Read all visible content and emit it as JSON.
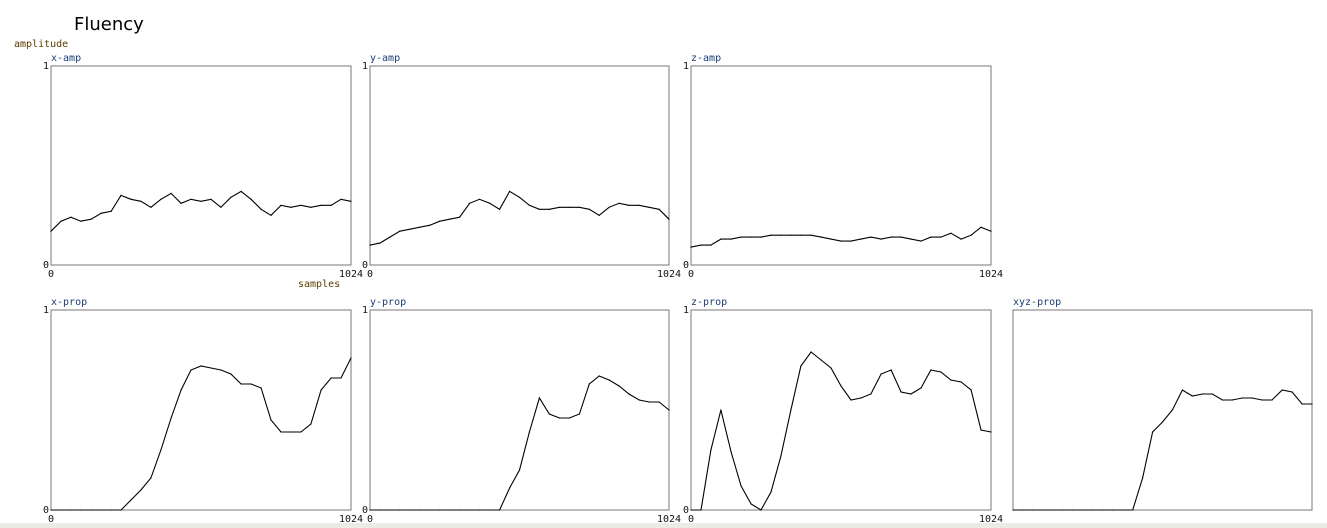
{
  "title": "Fluency",
  "chart_data": {
    "type": "line",
    "title": "Fluency",
    "ylabel": "amplitude",
    "xlabel": "samples",
    "xlim": [
      0,
      1024
    ],
    "ylim": [
      0,
      1
    ],
    "grid": false,
    "x": [
      0,
      34,
      68,
      102,
      137,
      171,
      205,
      239,
      273,
      307,
      341,
      375,
      410,
      444,
      478,
      512,
      546,
      580,
      614,
      649,
      683,
      717,
      751,
      785,
      819,
      853,
      887,
      922,
      956,
      990,
      1024
    ],
    "panels": [
      {
        "title": "x-amp",
        "y_ticks": [
          "0",
          "1"
        ],
        "x_ticks": [
          "0",
          "1024"
        ],
        "values": [
          0.17,
          0.22,
          0.24,
          0.22,
          0.23,
          0.26,
          0.27,
          0.35,
          0.33,
          0.32,
          0.29,
          0.33,
          0.36,
          0.31,
          0.33,
          0.32,
          0.33,
          0.29,
          0.34,
          0.37,
          0.33,
          0.28,
          0.25,
          0.3,
          0.29,
          0.3,
          0.29,
          0.3,
          0.3,
          0.33,
          0.32
        ]
      },
      {
        "title": "y-amp",
        "y_ticks": [
          "0",
          "1"
        ],
        "x_ticks": [
          "0",
          "1024"
        ],
        "values": [
          0.1,
          0.11,
          0.14,
          0.17,
          0.18,
          0.19,
          0.2,
          0.22,
          0.23,
          0.24,
          0.31,
          0.33,
          0.31,
          0.28,
          0.37,
          0.34,
          0.3,
          0.28,
          0.28,
          0.29,
          0.29,
          0.29,
          0.28,
          0.25,
          0.29,
          0.31,
          0.3,
          0.3,
          0.29,
          0.28,
          0.23
        ]
      },
      {
        "title": "z-amp",
        "y_ticks": [
          "0",
          "1"
        ],
        "x_ticks": [
          "0",
          "1024"
        ],
        "values": [
          0.09,
          0.1,
          0.1,
          0.13,
          0.13,
          0.14,
          0.14,
          0.14,
          0.15,
          0.15,
          0.15,
          0.15,
          0.15,
          0.14,
          0.13,
          0.12,
          0.12,
          0.13,
          0.14,
          0.13,
          0.14,
          0.14,
          0.13,
          0.12,
          0.14,
          0.14,
          0.16,
          0.13,
          0.15,
          0.19,
          0.17
        ]
      },
      {
        "title": "x-prop",
        "y_ticks": [
          "0",
          "1"
        ],
        "x_ticks": [
          "0",
          "1024"
        ],
        "values": [
          0,
          0,
          0,
          0,
          0,
          0,
          0,
          0,
          0.05,
          0.1,
          0.16,
          0.3,
          0.46,
          0.6,
          0.7,
          0.72,
          0.71,
          0.7,
          0.68,
          0.63,
          0.63,
          0.61,
          0.45,
          0.39,
          0.39,
          0.39,
          0.43,
          0.6,
          0.66,
          0.66,
          0.76
        ]
      },
      {
        "title": "y-prop",
        "y_ticks": [
          "0",
          "1"
        ],
        "x_ticks": [
          "0",
          "1024"
        ],
        "values": [
          0,
          0,
          0,
          0,
          0,
          0,
          0,
          0,
          0,
          0,
          0,
          0,
          0,
          0,
          0.11,
          0.2,
          0.39,
          0.56,
          0.48,
          0.46,
          0.46,
          0.48,
          0.63,
          0.67,
          0.65,
          0.62,
          0.58,
          0.55,
          0.54,
          0.54,
          0.5
        ]
      },
      {
        "title": "z-prop",
        "y_ticks": [
          "0",
          "1"
        ],
        "x_ticks": [
          "0",
          "1024"
        ],
        "values": [
          0,
          0,
          0.3,
          0.5,
          0.29,
          0.12,
          0.03,
          0,
          0.09,
          0.27,
          0.5,
          0.72,
          0.79,
          0.75,
          0.71,
          0.62,
          0.55,
          0.56,
          0.58,
          0.68,
          0.7,
          0.59,
          0.58,
          0.61,
          0.7,
          0.69,
          0.65,
          0.64,
          0.6,
          0.4,
          0.39
        ]
      },
      {
        "title": "xyz-prop",
        "y_ticks": [],
        "x_ticks": [],
        "values": [
          0,
          0,
          0,
          0,
          0,
          0,
          0,
          0,
          0,
          0,
          0,
          0,
          0,
          0.16,
          0.39,
          0.44,
          0.5,
          0.6,
          0.57,
          0.58,
          0.58,
          0.55,
          0.55,
          0.56,
          0.56,
          0.55,
          0.55,
          0.6,
          0.59,
          0.53,
          0.53
        ]
      }
    ]
  }
}
